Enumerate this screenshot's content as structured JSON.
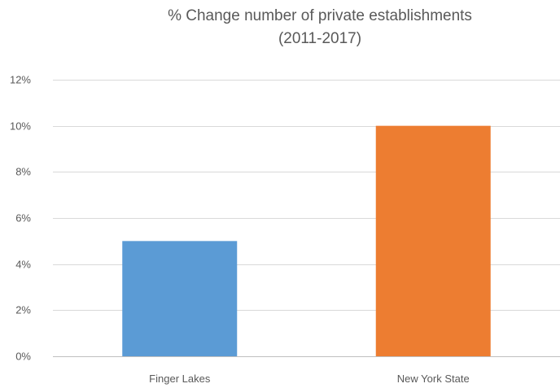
{
  "chart_data": {
    "type": "bar",
    "title_lines": [
      "% Change number of private establishments",
      "(2011-2017)"
    ],
    "categories": [
      "Finger Lakes",
      "New York State"
    ],
    "values": [
      5,
      10
    ],
    "value_unit": "%",
    "colors": [
      "#5b9bd5",
      "#ed7d31"
    ],
    "ylim": [
      0,
      12
    ],
    "yticks": [
      0,
      2,
      4,
      6,
      8,
      10,
      12
    ],
    "ytick_labels": [
      "0%",
      "2%",
      "4%",
      "6%",
      "8%",
      "10%",
      "12%"
    ],
    "grid": true,
    "legend": "none"
  }
}
